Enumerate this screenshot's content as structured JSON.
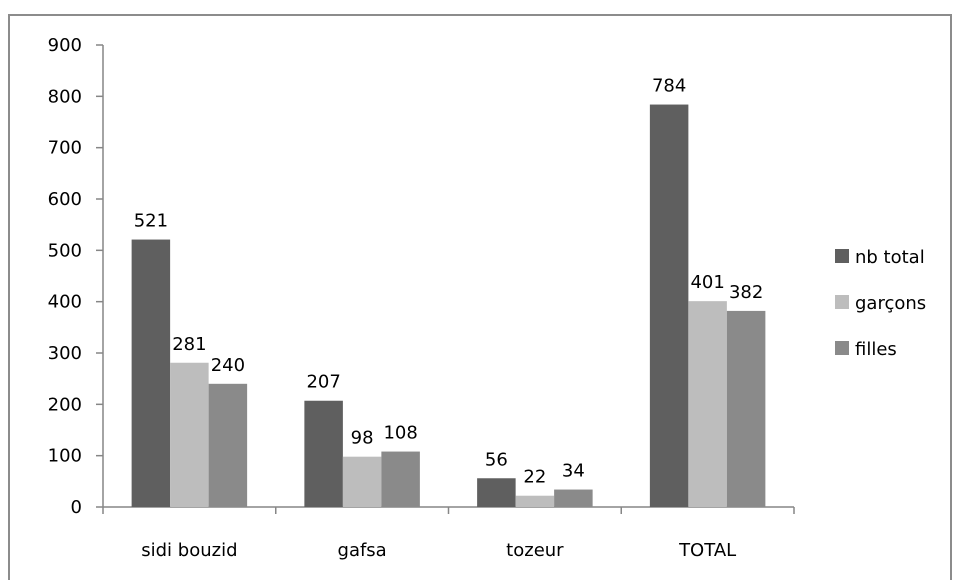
{
  "chart_data": {
    "type": "bar",
    "title": "",
    "xlabel": "",
    "ylabel": "",
    "ylim": [
      0,
      900
    ],
    "yticks": [
      0,
      100,
      200,
      300,
      400,
      500,
      600,
      700,
      800,
      900
    ],
    "grid": false,
    "legend_position": "right",
    "categories": [
      "sidi bouzid",
      "gafsa",
      "tozeur",
      "TOTAL"
    ],
    "series": [
      {
        "name": "nb total",
        "color": "#5f5f5f",
        "values": [
          521,
          207,
          56,
          784
        ]
      },
      {
        "name": "garçons",
        "color": "#bdbdbd",
        "values": [
          281,
          98,
          22,
          401
        ]
      },
      {
        "name": "filles",
        "color": "#8a8a8a",
        "values": [
          240,
          108,
          34,
          382
        ]
      }
    ]
  }
}
